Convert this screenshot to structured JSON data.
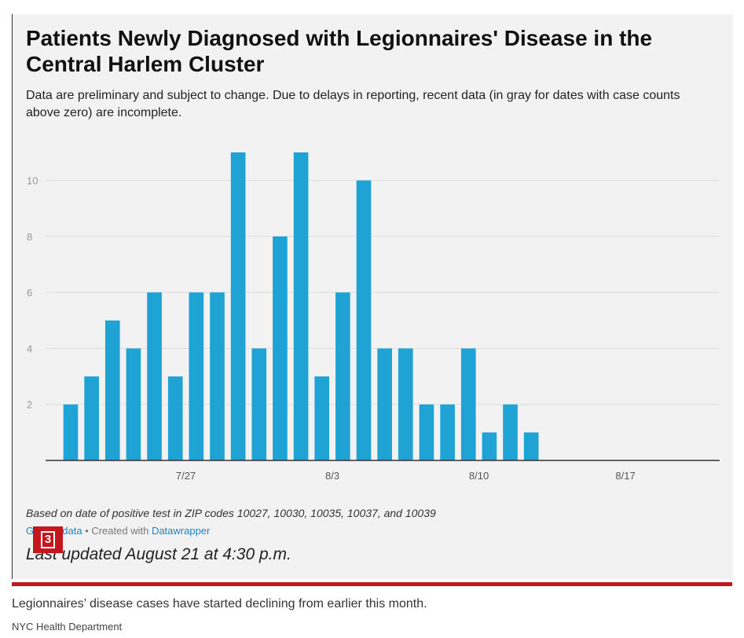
{
  "chart_data": {
    "type": "bar",
    "title": "Patients Newly Diagnosed with Legionnaires' Disease in the Central Harlem Cluster",
    "subtitle": "Data are preliminary and subject to change. Due to delays in reporting, recent data (in gray for dates with case counts above zero) are incomplete.",
    "x": [
      0,
      1,
      2,
      3,
      4,
      5,
      6,
      7,
      8,
      9,
      10,
      11,
      12,
      13,
      14,
      15,
      16,
      17,
      18,
      19,
      20,
      21,
      22,
      23,
      24
    ],
    "values": [
      2,
      3,
      5,
      4,
      6,
      3,
      6,
      6,
      11,
      4,
      8,
      11,
      3,
      6,
      10,
      4,
      4,
      2,
      2,
      4,
      1,
      2,
      1,
      0,
      0
    ],
    "x_domain": [
      -1.2,
      31
    ],
    "x_ticks": [
      {
        "at": 5.5,
        "label": "7/27"
      },
      {
        "at": 12.5,
        "label": "8/3"
      },
      {
        "at": 19.5,
        "label": "8/10"
      },
      {
        "at": 26.5,
        "label": "8/17"
      }
    ],
    "y_ticks": [
      2,
      4,
      6,
      8,
      10
    ],
    "ylim": [
      0,
      11
    ],
    "bar_color": "#1ea3d4",
    "grid": true,
    "xlabel": "",
    "ylabel": ""
  },
  "footer": {
    "note": "Based on date of positive test in ZIP codes 10027, 10030, 10035, 10037, and 10039",
    "get_data": "Get the data",
    "created_with": " • Created with ",
    "datawrapper": "Datawrapper",
    "updated": "Last updated August 21 at 4:30 p.m."
  },
  "marker": {
    "label": "3",
    "color": "#c4161c"
  },
  "caption": "Legionnaires’ disease cases have started declining from earlier this month.",
  "source": "NYC Health Department"
}
